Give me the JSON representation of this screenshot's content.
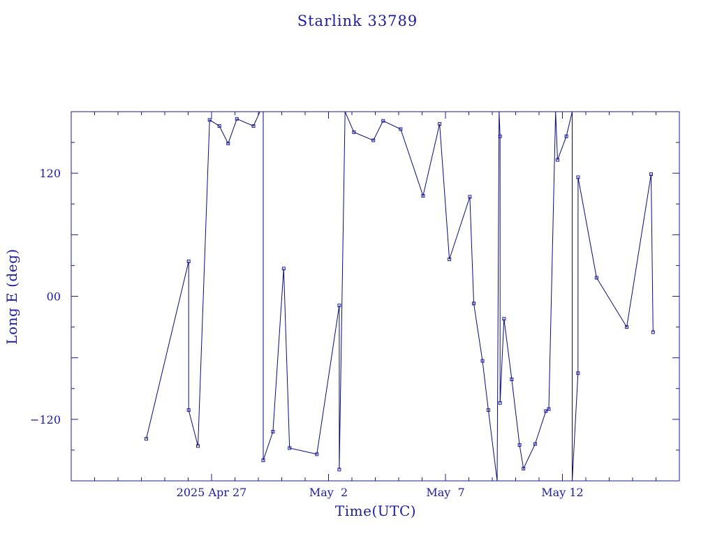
{
  "chart_data": {
    "type": "line",
    "title": "Starlink 33789",
    "xlabel": "Time(UTC)",
    "ylabel": "Long E (deg)",
    "x_unit": "date (UTC, 2025)",
    "xlim": [
      "2025-04-21",
      "2025-05-17"
    ],
    "ylim": [
      -180,
      180
    ],
    "x_tick_labels": [
      {
        "date": "2025-04-27",
        "label": "2025 Apr 27"
      },
      {
        "date": "2025-05-02",
        "label": "May  2"
      },
      {
        "date": "2025-05-07",
        "label": "May  7"
      },
      {
        "date": "2025-05-12",
        "label": "May 12"
      }
    ],
    "y_tick_labels": [
      {
        "value": 120,
        "label": "120"
      },
      {
        "value": 0,
        "label": "00"
      },
      {
        "value": -120,
        "label": "−120"
      }
    ],
    "series": [
      {
        "marker": "square",
        "color": "#1a1aa6",
        "points": [
          [
            "2025-04-24T05:00",
            -139
          ],
          [
            "2025-04-26T00:30",
            34
          ],
          [
            "2025-04-26T00:31",
            -111
          ],
          [
            "2025-04-26T10:00",
            -146
          ],
          [
            "2025-04-26T22:00",
            172
          ],
          [
            "2025-04-27T08:00",
            166
          ],
          [
            "2025-04-27T17:00",
            149
          ],
          [
            "2025-04-28T02:00",
            173
          ],
          [
            "2025-04-28T19:00",
            166
          ],
          [
            "2025-04-29T05:00",
            187
          ],
          [
            "2025-04-29T05:01",
            -160
          ],
          [
            "2025-04-29T15:00",
            -132
          ],
          [
            "2025-04-30T02:00",
            27
          ],
          [
            "2025-04-30T08:00",
            -148
          ],
          [
            "2025-05-01T12:00",
            -154
          ],
          [
            "2025-05-02T11:00",
            -9
          ],
          [
            "2025-05-02T11:01",
            -169
          ],
          [
            "2025-05-02T17:00",
            180
          ],
          [
            "2025-05-03T02:00",
            160
          ],
          [
            "2025-05-03T22:00",
            152
          ],
          [
            "2025-05-04T08:00",
            171
          ],
          [
            "2025-05-05T02:00",
            163
          ],
          [
            "2025-05-06T01:00",
            98
          ],
          [
            "2025-05-06T18:00",
            168
          ],
          [
            "2025-05-07T04:00",
            36
          ],
          [
            "2025-05-08T01:00",
            97
          ],
          [
            "2025-05-08T05:00",
            -7
          ],
          [
            "2025-05-08T14:00",
            -63
          ],
          [
            "2025-05-08T20:00",
            -111
          ],
          [
            "2025-05-09T05:00",
            -180
          ],
          [
            "2025-05-09T07:00",
            180
          ],
          [
            "2025-05-09T08:00",
            156
          ],
          [
            "2025-05-09T08:01",
            -104
          ],
          [
            "2025-05-09T12:00",
            -22
          ],
          [
            "2025-05-09T20:00",
            -81
          ],
          [
            "2025-05-10T04:00",
            -145
          ],
          [
            "2025-05-10T08:00",
            -168
          ],
          [
            "2025-05-10T20:00",
            -144
          ],
          [
            "2025-05-11T07:00",
            -112
          ],
          [
            "2025-05-11T10:00",
            -110
          ],
          [
            "2025-05-11T17:00",
            180
          ],
          [
            "2025-05-11T19:00",
            133
          ],
          [
            "2025-05-12T04:00",
            156
          ],
          [
            "2025-05-12T10:00",
            180
          ],
          [
            "2025-05-12T10:01",
            -180
          ],
          [
            "2025-05-12T16:00",
            -75
          ],
          [
            "2025-05-12T16:01",
            116
          ],
          [
            "2025-05-13T11:00",
            18
          ],
          [
            "2025-05-14T18:00",
            -30
          ],
          [
            "2025-05-15T19:00",
            119
          ],
          [
            "2025-05-15T21:00",
            -35
          ]
        ]
      }
    ],
    "grid": false,
    "colors": {
      "axes": "#1a1a8c",
      "text": "#1a1aa6",
      "line": "#0a0a7a",
      "background": "#ffffff"
    }
  }
}
